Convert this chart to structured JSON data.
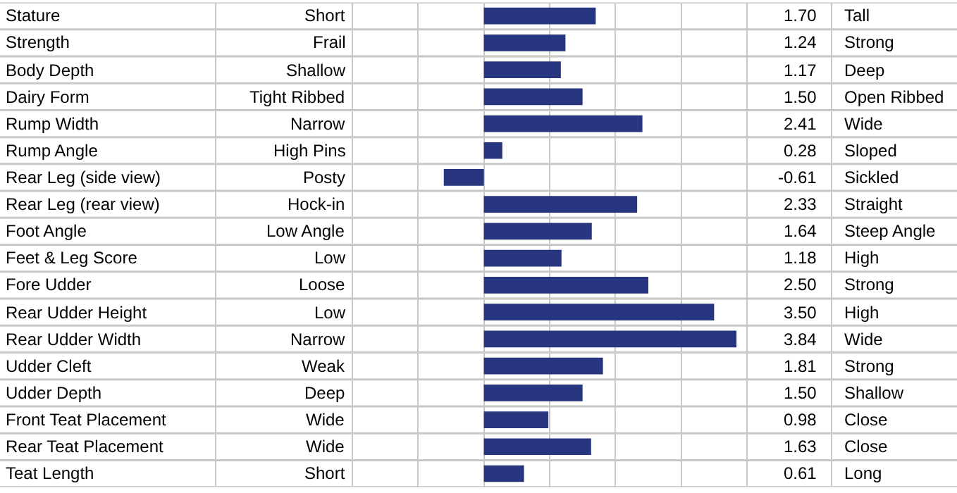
{
  "chart_data": {
    "type": "bar",
    "orientation": "horizontal",
    "tick_labels": false,
    "grid": "x",
    "xlim": [
      -2,
      4
    ],
    "xticks": [
      {
        "value": -2,
        "label": null
      },
      {
        "value": -1,
        "label": null
      },
      {
        "value": 0,
        "label": null
      },
      {
        "value": 1,
        "label": null
      },
      {
        "value": 2,
        "label": null
      },
      {
        "value": 3,
        "label": null
      },
      {
        "value": 4,
        "label": null
      }
    ],
    "categories": [
      "Stature",
      "Strength",
      "Body Depth",
      "Dairy Form",
      "Rump Width",
      "Rump Angle",
      "Rear Leg (side view)",
      "Rear Leg (rear view)",
      "Foot Angle",
      "Feet & Leg Score",
      "Fore Udder",
      "Rear Udder Height",
      "Rear Udder Width",
      "Udder Cleft",
      "Udder Depth",
      "Front Teat Placement",
      "Rear Teat Placement",
      "Teat Length"
    ],
    "series": [
      {
        "color": "#27367f",
        "values": [
          1.7,
          1.24,
          1.17,
          1.5,
          2.41,
          0.28,
          -0.61,
          2.33,
          1.64,
          1.18,
          2.5,
          3.5,
          3.84,
          1.81,
          1.5,
          0.98,
          1.63,
          0.61
        ],
        "value_labels": [
          "1.70",
          "1.24",
          "1.17",
          "1.50",
          "2.41",
          "0.28",
          "-0.61",
          "2.33",
          "1.64",
          "1.18",
          "2.50",
          "3.50",
          "3.84",
          "1.81",
          "1.50",
          "0.98",
          "1.63",
          "0.61"
        ]
      }
    ],
    "annotations": [
      "Short",
      "Frail",
      "Shallow",
      "Tight Ribbed",
      "Narrow",
      "High Pins",
      "Posty",
      "Hock-in",
      "Low Angle",
      "Low",
      "Loose",
      "Low",
      "Narrow",
      "Weak",
      "Deep",
      "Wide",
      "Wide",
      "Short",
      "Tall",
      "Strong",
      "Deep",
      "Open Ribbed",
      "Wide",
      "Sloped",
      "Sickled",
      "Straight",
      "Steep Angle",
      "High",
      "Strong",
      "High",
      "Wide",
      "Strong",
      "Shallow",
      "Close",
      "Close",
      "Long"
    ]
  }
}
